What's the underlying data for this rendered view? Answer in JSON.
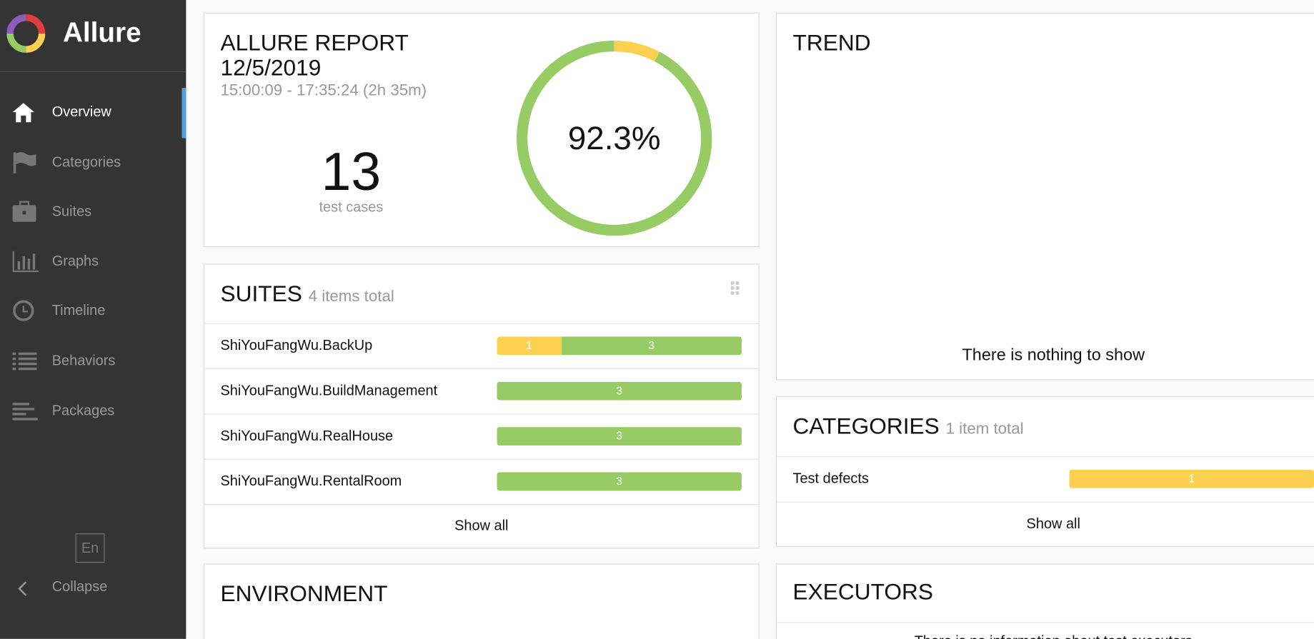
{
  "sidebar": {
    "brand": "Allure",
    "nav": [
      {
        "label": "Overview",
        "active": true
      },
      {
        "label": "Categories",
        "active": false
      },
      {
        "label": "Suites",
        "active": false
      },
      {
        "label": "Graphs",
        "active": false
      },
      {
        "label": "Timeline",
        "active": false
      },
      {
        "label": "Behaviors",
        "active": false
      },
      {
        "label": "Packages",
        "active": false
      }
    ],
    "language": "En",
    "collapse": "Collapse"
  },
  "summary": {
    "title": "ALLURE REPORT",
    "date": "12/5/2019",
    "time_range": "15:00:09 - 17:35:24 (2h 35m)",
    "test_case_count": 13,
    "test_case_label": "test cases",
    "success_rate": "92.3%"
  },
  "suites": {
    "title": "SUITES",
    "total_label": "4 items total",
    "items": [
      {
        "name": "ShiYouFangWu.BackUp",
        "segments": [
          {
            "color": "#fdd14f",
            "count": 1
          },
          {
            "color": "#97cc64",
            "count": 3
          }
        ]
      },
      {
        "name": "ShiYouFangWu.BuildManagement",
        "segments": [
          {
            "color": "#97cc64",
            "count": 3
          }
        ]
      },
      {
        "name": "ShiYouFangWu.RealHouse",
        "segments": [
          {
            "color": "#97cc64",
            "count": 3
          }
        ]
      },
      {
        "name": "ShiYouFangWu.RentalRoom",
        "segments": [
          {
            "color": "#97cc64",
            "count": 3
          }
        ]
      }
    ],
    "show_all": "Show all"
  },
  "trend": {
    "title": "TREND",
    "empty": "There is nothing to show"
  },
  "categories": {
    "title": "CATEGORIES",
    "total_label": "1 item total",
    "items": [
      {
        "name": "Test defects",
        "segments": [
          {
            "color": "#fdd14f",
            "count": 1
          }
        ]
      }
    ],
    "show_all": "Show all"
  },
  "environment": {
    "title": "ENVIRONMENT"
  },
  "executors": {
    "title": "EXECUTORS",
    "empty": "There is no information about test executors"
  }
}
